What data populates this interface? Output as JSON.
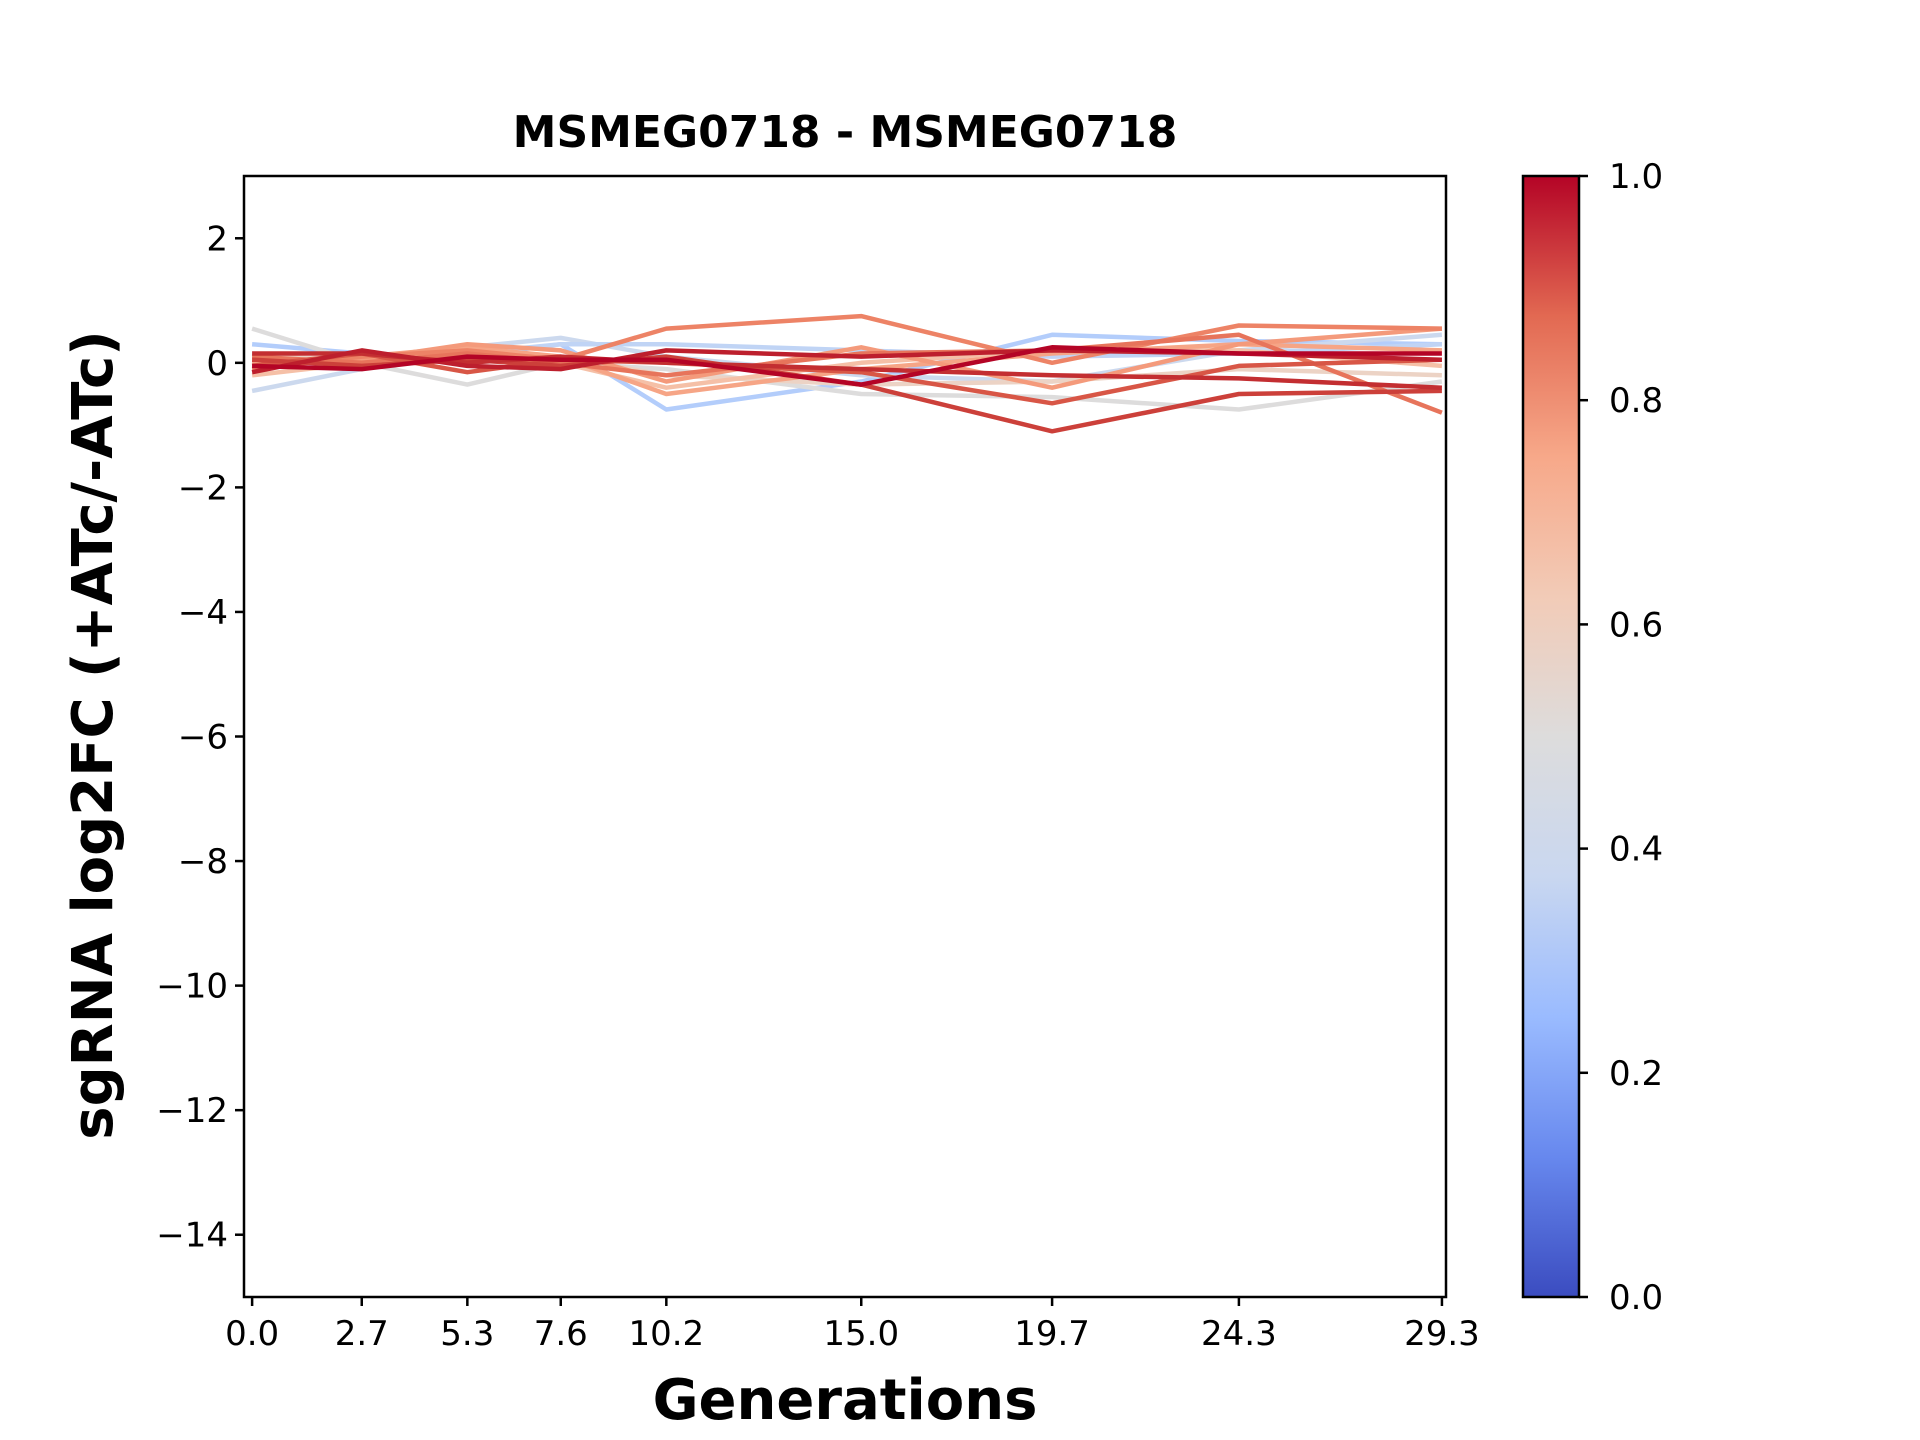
{
  "chart_data": {
    "type": "line",
    "title": "MSMEG0718 - MSMEG0718",
    "xlabel": "Generations",
    "ylabel": "sgRNA log2FC (+ATc/-ATc)",
    "x": [
      0.0,
      2.7,
      5.3,
      7.6,
      10.2,
      15.0,
      19.7,
      24.3,
      29.3
    ],
    "x_tick_labels": [
      "0.0",
      "2.7",
      "5.3",
      "7.6",
      "10.2",
      "15.0",
      "19.7",
      "24.3",
      "29.3"
    ],
    "xlim": [
      -0.2,
      29.4
    ],
    "ylim": [
      -15,
      3
    ],
    "y_ticks": [
      2,
      0,
      -2,
      -4,
      -6,
      -8,
      -10,
      -12,
      -14
    ],
    "y_tick_labels": [
      "2",
      "0",
      "−2",
      "−4",
      "−6",
      "−8",
      "−10",
      "−12",
      "−14"
    ],
    "grid": false,
    "colorbar": {
      "range": [
        0.0,
        1.0
      ],
      "ticks": [
        0.0,
        0.2,
        0.4,
        0.6,
        0.8,
        1.0
      ],
      "tick_labels": [
        "0.0",
        "0.2",
        "0.4",
        "0.6",
        "0.8",
        "1.0"
      ],
      "colormap": "coolwarm",
      "stops": [
        "#3b4cc0",
        "#6788ee",
        "#9abbff",
        "#c9d7f0",
        "#dddcdc",
        "#f2cbb7",
        "#f7a889",
        "#e26952",
        "#b40426"
      ]
    },
    "series": [
      {
        "color_value": 0.38,
        "color": "#b3cdfb",
        "values": [
          0.3,
          0.15,
          0.1,
          0.3,
          -0.75,
          -0.3,
          0.45,
          0.35,
          0.3
        ]
      },
      {
        "color_value": 0.45,
        "color": "#ccd9ee",
        "values": [
          -0.45,
          -0.1,
          0.25,
          0.4,
          0.1,
          -0.2,
          -0.3,
          0.2,
          0.45
        ]
      },
      {
        "color_value": 0.5,
        "color": "#dddcdc",
        "values": [
          0.55,
          0.0,
          -0.35,
          0.0,
          -0.1,
          -0.5,
          -0.55,
          -0.75,
          -0.3
        ]
      },
      {
        "color_value": 0.42,
        "color": "#c0d4f5",
        "values": [
          0.15,
          -0.05,
          0.15,
          0.3,
          0.3,
          0.2,
          0.1,
          0.15,
          0.3
        ]
      },
      {
        "color_value": 0.55,
        "color": "#ecd3c5",
        "values": [
          0.1,
          0.05,
          0.05,
          0.1,
          -0.2,
          -0.35,
          -0.3,
          -0.1,
          -0.2
        ]
      },
      {
        "color_value": 0.62,
        "color": "#f5c0a7",
        "values": [
          -0.2,
          0.0,
          0.2,
          0.0,
          -0.4,
          0.0,
          0.2,
          0.2,
          -0.05
        ]
      },
      {
        "color_value": 0.68,
        "color": "#f6a586",
        "values": [
          0.0,
          0.1,
          0.25,
          0.1,
          -0.5,
          -0.1,
          0.15,
          0.3,
          0.2
        ]
      },
      {
        "color_value": 0.72,
        "color": "#f49a7b",
        "values": [
          0.05,
          0.05,
          0.3,
          0.2,
          -0.3,
          0.25,
          -0.4,
          0.3,
          0.55
        ]
      },
      {
        "color_value": 0.78,
        "color": "#ed8366",
        "values": [
          -0.1,
          0.1,
          0.2,
          0.05,
          0.55,
          0.75,
          0.0,
          0.6,
          0.55
        ]
      },
      {
        "color_value": 0.8,
        "color": "#e7745b",
        "values": [
          0.1,
          0.0,
          0.15,
          0.0,
          -0.2,
          0.15,
          0.2,
          0.45,
          -0.8
        ]
      },
      {
        "color_value": 0.86,
        "color": "#d85646",
        "values": [
          -0.05,
          0.15,
          -0.15,
          0.05,
          0.0,
          -0.15,
          -0.65,
          -0.05,
          0.05
        ]
      },
      {
        "color_value": 0.9,
        "color": "#cc403a",
        "values": [
          0.05,
          -0.05,
          0.05,
          -0.05,
          0.1,
          -0.35,
          -1.1,
          -0.5,
          -0.45
        ]
      },
      {
        "color_value": 0.93,
        "color": "#c32e31",
        "values": [
          0.15,
          0.15,
          0.0,
          0.1,
          0.0,
          -0.1,
          -0.2,
          -0.25,
          -0.4
        ]
      },
      {
        "color_value": 0.96,
        "color": "#bd1f2d",
        "values": [
          -0.15,
          0.2,
          -0.05,
          -0.1,
          0.2,
          0.1,
          0.2,
          0.15,
          0.05
        ]
      },
      {
        "color_value": 0.99,
        "color": "#b40426",
        "values": [
          -0.05,
          -0.1,
          0.1,
          0.05,
          0.05,
          -0.35,
          0.25,
          0.15,
          0.15
        ]
      }
    ]
  }
}
